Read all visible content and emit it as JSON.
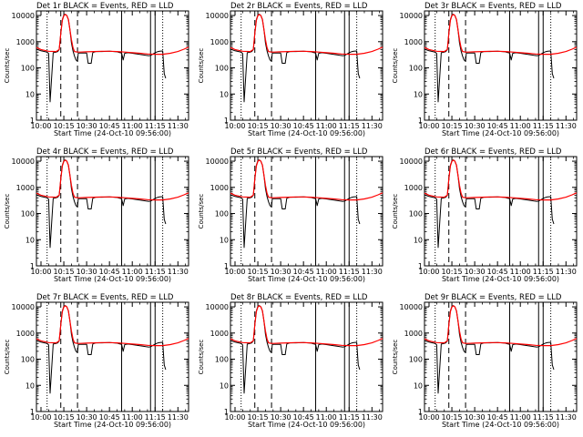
{
  "colors": {
    "background": "#ffffff",
    "axes": "#000000",
    "events": "#000000",
    "lld": "#ff0000"
  },
  "chart_data": [
    {
      "type": "line",
      "title": "Det 1r BLACK = Events, RED = LLD",
      "series": [
        {
          "name": "Events"
        },
        {
          "name": "LLD"
        }
      ]
    },
    {
      "type": "line",
      "title": "Det 2r BLACK = Events, RED = LLD",
      "series": [
        {
          "name": "Events"
        },
        {
          "name": "LLD"
        }
      ]
    },
    {
      "type": "line",
      "title": "Det 3r BLACK = Events, RED = LLD",
      "series": [
        {
          "name": "Events"
        },
        {
          "name": "LLD"
        }
      ]
    },
    {
      "type": "line",
      "title": "Det 4r BLACK = Events, RED = LLD",
      "series": [
        {
          "name": "Events"
        },
        {
          "name": "LLD"
        }
      ]
    },
    {
      "type": "line",
      "title": "Det 5r BLACK = Events, RED = LLD",
      "series": [
        {
          "name": "Events"
        },
        {
          "name": "LLD"
        }
      ]
    },
    {
      "type": "line",
      "title": "Det 6r BLACK = Events, RED = LLD",
      "series": [
        {
          "name": "Events"
        },
        {
          "name": "LLD"
        }
      ]
    },
    {
      "type": "line",
      "title": "Det 7r BLACK = Events, RED = LLD",
      "series": [
        {
          "name": "Events"
        },
        {
          "name": "LLD"
        }
      ]
    },
    {
      "type": "line",
      "title": "Det 8r BLACK = Events, RED = LLD",
      "series": [
        {
          "name": "Events"
        },
        {
          "name": "LLD"
        }
      ]
    },
    {
      "type": "line",
      "title": "Det 9r BLACK = Events, RED = LLD",
      "series": [
        {
          "name": "Events"
        },
        {
          "name": "LLD"
        }
      ]
    }
  ],
  "shared": {
    "xlabel": "Start Time (24-Oct-10 09:56:00)",
    "ylabel": "Counts/sec",
    "xlim_minutes": [
      597,
      697
    ],
    "ylim": [
      1,
      15000
    ],
    "yscale": "log",
    "x_ticks": [
      {
        "label": "10:00",
        "minutes": 600
      },
      {
        "label": "10:15",
        "minutes": 615
      },
      {
        "label": "10:30",
        "minutes": 630
      },
      {
        "label": "10:45",
        "minutes": 645
      },
      {
        "label": "11:00",
        "minutes": 660
      },
      {
        "label": "11:15",
        "minutes": 675
      },
      {
        "label": "11:30",
        "minutes": 690
      }
    ],
    "y_ticks": [
      {
        "label": "1",
        "value": 1
      },
      {
        "label": "10",
        "value": 10
      },
      {
        "label": "100",
        "value": 100
      },
      {
        "label": "1000",
        "value": 1000
      },
      {
        "label": "10000",
        "value": 10000
      }
    ],
    "dotted_lines_minutes": [
      604,
      680
    ],
    "dashed_lines_minutes": [
      613,
      624
    ],
    "solid_lines_minutes": [
      653,
      672,
      675
    ],
    "events": {
      "x_minutes": [
        597,
        600,
        604,
        605,
        606,
        608,
        610,
        611,
        612,
        613,
        614,
        615,
        616,
        617,
        618,
        619,
        620,
        621,
        622,
        623,
        624,
        624.5,
        625,
        627,
        630,
        631,
        633,
        634,
        635,
        636,
        640,
        645,
        650,
        652,
        653,
        654,
        655,
        657,
        660,
        663,
        666,
        669,
        671,
        672,
        673,
        674,
        675,
        676,
        677,
        678,
        680,
        681,
        682
      ],
      "y": [
        520,
        450,
        400,
        350,
        5,
        380,
        400,
        420,
        500,
        2000,
        7000,
        10500,
        11200,
        10000,
        7000,
        3000,
        900,
        450,
        280,
        200,
        180,
        360,
        370,
        370,
        370,
        150,
        150,
        380,
        400,
        420,
        420,
        430,
        410,
        380,
        370,
        200,
        360,
        380,
        360,
        340,
        320,
        300,
        290,
        300,
        320,
        350,
        380,
        400,
        420,
        430,
        440,
        60,
        40
      ]
    },
    "lld": {
      "x_minutes": [
        597,
        600,
        605,
        610,
        612,
        613,
        614,
        615,
        616,
        617,
        618,
        619,
        620,
        621,
        622,
        624,
        626,
        630,
        635,
        640,
        645,
        650,
        655,
        660,
        665,
        670,
        675,
        680,
        685,
        690,
        694,
        697
      ],
      "y": [
        600,
        500,
        430,
        420,
        500,
        2000,
        6500,
        10000,
        11000,
        10000,
        7000,
        3000,
        1200,
        600,
        420,
        400,
        400,
        410,
        420,
        430,
        430,
        420,
        400,
        380,
        360,
        340,
        330,
        330,
        360,
        420,
        520,
        620
      ]
    }
  }
}
